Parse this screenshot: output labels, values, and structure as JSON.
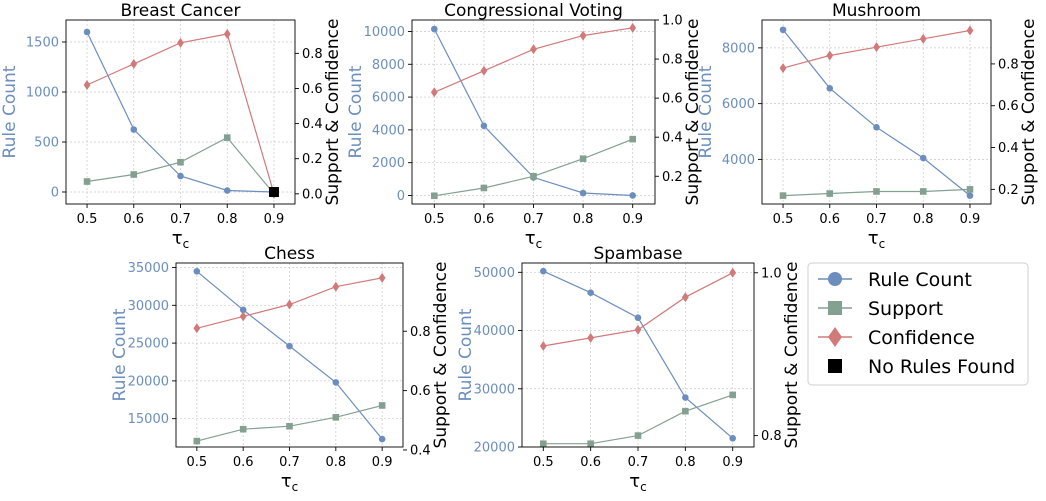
{
  "colors": {
    "rule_count": "#6c8ebf",
    "support": "#84a090",
    "confidence": "#d27a7a",
    "no_rules": "#000000"
  },
  "axis_labels": {
    "left": "Rule Count",
    "right": "Support & Confidence",
    "x": "τ",
    "x_sub": "c"
  },
  "legend": [
    {
      "label": "Rule Count",
      "marker": "circle",
      "series": "rule_count"
    },
    {
      "label": "Support",
      "marker": "square",
      "series": "support"
    },
    {
      "label": "Confidence",
      "marker": "diamond",
      "series": "confidence"
    },
    {
      "label": "No Rules Found",
      "marker": "square-filled",
      "series": "no_rules"
    }
  ],
  "chart_data": [
    {
      "type": "line",
      "title": "Breast Cancer",
      "x": [
        0.5,
        0.6,
        0.7,
        0.8,
        0.9
      ],
      "xticks": [
        "0.5",
        "0.6",
        "0.7",
        "0.8",
        "0.9"
      ],
      "left_ylim": [
        -120,
        1720
      ],
      "left_ticks": [
        0,
        500,
        1000,
        1500
      ],
      "right_ylim": [
        -0.058,
        0.99
      ],
      "right_ticks": [
        "0.0",
        "0.2",
        "0.4",
        "0.6",
        "0.8"
      ],
      "right_tick_values": [
        0.0,
        0.2,
        0.4,
        0.6,
        0.8
      ],
      "series": [
        {
          "name": "Rule Count",
          "axis": "left",
          "values": [
            1600,
            625,
            160,
            15,
            0
          ]
        },
        {
          "name": "Support",
          "axis": "right",
          "values": [
            0.07,
            0.11,
            0.18,
            0.32,
            0.0
          ]
        },
        {
          "name": "Confidence",
          "axis": "right",
          "values": [
            0.62,
            0.74,
            0.86,
            0.91,
            0.0
          ]
        }
      ],
      "no_rules_found": [
        {
          "x": 0.9
        }
      ]
    },
    {
      "type": "line",
      "title": "Congressional Voting",
      "x": [
        0.5,
        0.6,
        0.7,
        0.8,
        0.9
      ],
      "xticks": [
        "0.5",
        "0.6",
        "0.7",
        "0.8",
        "0.9"
      ],
      "left_ylim": [
        -520,
        10700
      ],
      "left_ticks": [
        0,
        2000,
        4000,
        6000,
        8000,
        10000
      ],
      "right_ylim": [
        0.058,
        1.0
      ],
      "right_ticks": [
        "0.2",
        "0.4",
        "0.6",
        "0.8",
        "1.0"
      ],
      "right_tick_values": [
        0.2,
        0.4,
        0.6,
        0.8,
        1.0
      ],
      "series": [
        {
          "name": "Rule Count",
          "axis": "left",
          "values": [
            10150,
            4250,
            1100,
            150,
            0
          ]
        },
        {
          "name": "Support",
          "axis": "right",
          "values": [
            0.1,
            0.14,
            0.2,
            0.29,
            0.39
          ]
        },
        {
          "name": "Confidence",
          "axis": "right",
          "values": [
            0.63,
            0.74,
            0.85,
            0.92,
            0.96
          ]
        }
      ]
    },
    {
      "type": "line",
      "title": "Mushroom",
      "x": [
        0.5,
        0.6,
        0.7,
        0.8,
        0.9
      ],
      "xticks": [
        "0.5",
        "0.6",
        "0.7",
        "0.8",
        "0.9"
      ],
      "left_ylim": [
        2400,
        9000
      ],
      "left_ticks": [
        4000,
        6000,
        8000
      ],
      "right_ylim": [
        0.13,
        1.01
      ],
      "right_ticks": [
        "0.2",
        "0.4",
        "0.6",
        "0.8"
      ],
      "right_tick_values": [
        0.2,
        0.4,
        0.6,
        0.8
      ],
      "series": [
        {
          "name": "Rule Count",
          "axis": "left",
          "values": [
            8650,
            6550,
            5150,
            4050,
            2700
          ]
        },
        {
          "name": "Support",
          "axis": "right",
          "values": [
            0.17,
            0.18,
            0.19,
            0.19,
            0.2
          ]
        },
        {
          "name": "Confidence",
          "axis": "right",
          "values": [
            0.78,
            0.84,
            0.88,
            0.92,
            0.96
          ]
        }
      ]
    },
    {
      "type": "line",
      "title": "Chess",
      "x": [
        0.5,
        0.6,
        0.7,
        0.8,
        0.9
      ],
      "xticks": [
        "0.5",
        "0.6",
        "0.7",
        "0.8",
        "0.9"
      ],
      "left_ylim": [
        11250,
        35600
      ],
      "left_ticks": [
        15000,
        20000,
        25000,
        30000,
        35000
      ],
      "right_ylim": [
        0.41,
        1.03
      ],
      "right_ticks": [
        "0.4",
        "0.6",
        "0.8"
      ],
      "right_tick_values": [
        0.4,
        0.6,
        0.8
      ],
      "series": [
        {
          "name": "Rule Count",
          "axis": "left",
          "values": [
            34500,
            29400,
            24600,
            19800,
            12300
          ]
        },
        {
          "name": "Support",
          "axis": "right",
          "values": [
            0.43,
            0.47,
            0.48,
            0.51,
            0.55
          ]
        },
        {
          "name": "Confidence",
          "axis": "right",
          "values": [
            0.81,
            0.85,
            0.89,
            0.95,
            0.98
          ]
        }
      ]
    },
    {
      "type": "line",
      "title": "Spambase",
      "x": [
        0.5,
        0.6,
        0.7,
        0.8,
        0.9
      ],
      "xticks": [
        "0.5",
        "0.6",
        "0.7",
        "0.8",
        "0.9"
      ],
      "left_ylim": [
        20000,
        51600
      ],
      "left_ticks": [
        20000,
        30000,
        40000,
        50000
      ],
      "right_ylim": [
        0.786,
        1.012
      ],
      "right_ticks": [
        "0.8",
        "1.0"
      ],
      "right_tick_values": [
        0.8,
        1.0
      ],
      "series": [
        {
          "name": "Rule Count",
          "axis": "left",
          "values": [
            50200,
            46500,
            42200,
            28500,
            21500
          ]
        },
        {
          "name": "Support",
          "axis": "right",
          "values": [
            0.79,
            0.79,
            0.8,
            0.83,
            0.85
          ]
        },
        {
          "name": "Confidence",
          "axis": "right",
          "values": [
            0.91,
            0.92,
            0.93,
            0.97,
            1.0
          ]
        }
      ]
    }
  ]
}
